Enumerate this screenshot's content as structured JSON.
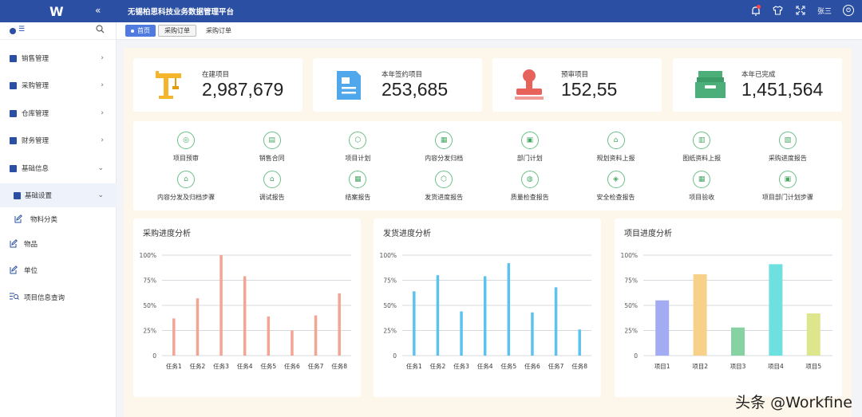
{
  "header": {
    "logo": "W",
    "collapse_icon": "«",
    "title": "无锡柏思科技业务数据管理平台",
    "user": "张三",
    "logout": "⏻"
  },
  "sidebar": {
    "menu_icon": "☰",
    "items": [
      {
        "label": "销售管理",
        "icon": "square-icon",
        "chevron": "›"
      },
      {
        "label": "采购管理",
        "icon": "square-icon",
        "chevron": "›"
      },
      {
        "label": "仓库管理",
        "icon": "square-icon",
        "chevron": "›"
      },
      {
        "label": "财务管理",
        "icon": "square-icon",
        "chevron": "›"
      },
      {
        "label": "基础信息",
        "icon": "square-icon",
        "chevron": "⌄"
      },
      {
        "label": "基础设置",
        "icon": "square-icon",
        "chevron": "⌄"
      },
      {
        "label": "物料分类",
        "icon": "edit-icon"
      },
      {
        "label": "物品",
        "icon": "edit-icon"
      },
      {
        "label": "单位",
        "icon": "edit-icon"
      },
      {
        "label": "项目信息查询",
        "icon": "list-search-icon"
      }
    ]
  },
  "tabs": [
    "首页",
    "采购订单",
    "采购订单"
  ],
  "stats": [
    {
      "label": "在建项目",
      "value": "2,987,679",
      "icon": "crane-icon",
      "color": "#f5b52a"
    },
    {
      "label": "本年签约项目",
      "value": "253,685",
      "icon": "document-icon",
      "color": "#4fa8ec"
    },
    {
      "label": "预审项目",
      "value": "152,55",
      "icon": "stamp-icon",
      "color": "#e8625c"
    },
    {
      "label": "本年已完成",
      "value": "1,451,564",
      "icon": "inbox-icon",
      "color": "#4cae78"
    }
  ],
  "quick_actions": [
    "项目预审",
    "销售合同",
    "项目计划",
    "内容分发归档",
    "部门计划",
    "规划资料上报",
    "图纸资料上报",
    "采购进度报告",
    "内容分发及归档步骤",
    "调试报告",
    "结案报告",
    "发货进度报告",
    "质量检查报告",
    "安全检查报告",
    "项目验收",
    "项目部门计划步骤"
  ],
  "chart_data": [
    {
      "type": "bar",
      "title": "采购进度分析",
      "categories": [
        "任务1",
        "任务2",
        "任务3",
        "任务4",
        "任务5",
        "任务6",
        "任务7",
        "任务8"
      ],
      "values": [
        37,
        57,
        100,
        79,
        39,
        25,
        40,
        62
      ],
      "yticks": [
        "0",
        "25%",
        "50%",
        "75%",
        "100%"
      ],
      "ylim": [
        0,
        100
      ],
      "color": "#f4a493",
      "grid": true
    },
    {
      "type": "bar",
      "title": "发货进度分析",
      "categories": [
        "任务1",
        "任务2",
        "任务3",
        "任务4",
        "任务5",
        "任务6",
        "任务7",
        "任务8"
      ],
      "values": [
        64,
        80,
        44,
        79,
        92,
        43,
        68,
        26
      ],
      "yticks": [
        "0",
        "25%",
        "50%",
        "75%",
        "100%"
      ],
      "ylim": [
        0,
        100
      ],
      "color": "#5ec2f0",
      "grid": true
    },
    {
      "type": "bar",
      "title": "项目进度分析",
      "categories": [
        "项目1",
        "项目2",
        "项目3",
        "项目4",
        "项目5"
      ],
      "values": [
        55,
        81,
        28,
        91,
        42
      ],
      "yticks": [
        "0",
        "25%",
        "50%",
        "75%",
        "100%"
      ],
      "ylim": [
        0,
        100
      ],
      "colors": [
        "#a3abf2",
        "#f7d08a",
        "#86d2a2",
        "#6ee0e0",
        "#dde68c"
      ],
      "grid": true
    }
  ],
  "watermark": "头条 @Workfine"
}
